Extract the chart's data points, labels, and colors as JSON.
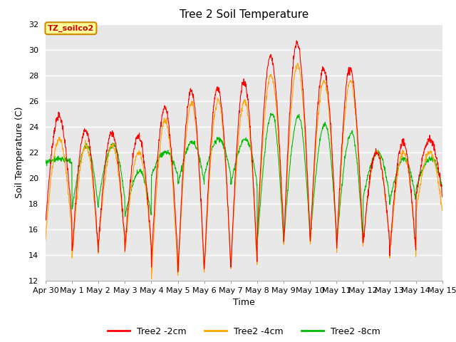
{
  "title": "Tree 2 Soil Temperature",
  "xlabel": "Time",
  "ylabel": "Soil Temperature (C)",
  "ylim": [
    12,
    32
  ],
  "yticks": [
    12,
    14,
    16,
    18,
    20,
    22,
    24,
    26,
    28,
    30,
    32
  ],
  "xtick_labels": [
    "Apr 30",
    "May 1",
    "May 2",
    "May 3",
    "May 4",
    "May 5",
    "May 6",
    "May 7",
    "May 8",
    "May 9",
    "May 10",
    "May 11",
    "May 12",
    "May 13",
    "May 14",
    "May 15"
  ],
  "legend_labels": [
    "Tree2 -2cm",
    "Tree2 -4cm",
    "Tree2 -8cm"
  ],
  "line_colors": [
    "#ff0000",
    "#ffa500",
    "#00bb00"
  ],
  "annotation_text": "TZ_soilco2",
  "annotation_box_facecolor": "#ffff99",
  "annotation_box_edgecolor": "#cc8800",
  "background_color": "#e8e8e8",
  "grid_color": "#ffffff",
  "title_fontsize": 11,
  "axis_label_fontsize": 9,
  "tick_fontsize": 8,
  "n_days": 15,
  "pts_per_day": 96,
  "daily_min_2cm": [
    16.5,
    14.0,
    15.0,
    14.5,
    13.5,
    12.5,
    13.0,
    13.0,
    15.5,
    15.0,
    15.0,
    14.5,
    15.0,
    14.0,
    18.5
  ],
  "daily_max_2cm": [
    24.8,
    23.8,
    23.5,
    23.3,
    25.5,
    26.8,
    27.0,
    27.5,
    29.5,
    30.5,
    28.5,
    28.5,
    22.0,
    22.8,
    23.0
  ],
  "daily_min_4cm": [
    15.5,
    13.8,
    14.8,
    14.2,
    12.2,
    12.3,
    12.8,
    13.0,
    15.2,
    14.9,
    14.8,
    14.2,
    15.0,
    13.9,
    17.3
  ],
  "daily_max_4cm": [
    23.0,
    22.5,
    22.5,
    22.0,
    24.5,
    25.8,
    26.0,
    26.0,
    28.0,
    28.8,
    27.5,
    27.5,
    22.0,
    22.0,
    22.0
  ],
  "daily_min_8cm": [
    21.2,
    17.5,
    18.2,
    17.0,
    20.2,
    19.5,
    20.2,
    19.5,
    14.8,
    15.0,
    15.2,
    14.8,
    18.5,
    18.2,
    19.2
  ],
  "daily_max_8cm": [
    21.5,
    22.5,
    22.6,
    20.5,
    22.0,
    22.8,
    23.0,
    23.0,
    25.0,
    24.8,
    24.2,
    23.5,
    22.0,
    21.5,
    21.5
  ]
}
